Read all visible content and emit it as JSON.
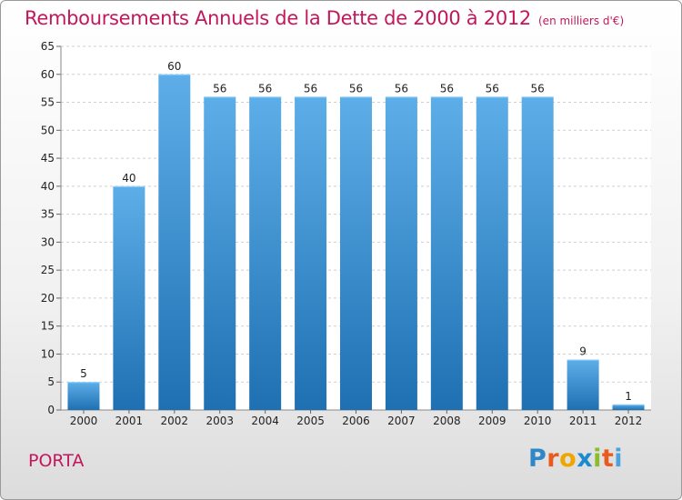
{
  "header": {
    "title": "Remboursements Annuels de la Dette de 2000 à 2012",
    "unit": "(en milliers d'€)"
  },
  "footer": {
    "commune": "PORTA",
    "logo": {
      "text": "Proxiti"
    }
  },
  "colors": {
    "title": "#c2185b",
    "bar_top": "#5daee8",
    "bar_bottom": "#1f70b2",
    "grid": "#cfcfcf",
    "axis_text": "#222222",
    "logo_letters": [
      "#2e87c8",
      "#e95a1f",
      "#f0a500",
      "#1c8ad1",
      "#8bbd2b",
      "#e95a1f",
      "#4aa3df"
    ]
  },
  "chart_data": {
    "type": "bar",
    "title": "Remboursements Annuels de la Dette de 2000 à 2012",
    "subtitle": "(en milliers d'€)",
    "categories": [
      "2000",
      "2001",
      "2002",
      "2003",
      "2004",
      "2005",
      "2006",
      "2007",
      "2008",
      "2009",
      "2010",
      "2011",
      "2012"
    ],
    "values": [
      5,
      40,
      60,
      56,
      56,
      56,
      56,
      56,
      56,
      56,
      56,
      9,
      1
    ],
    "ylim": [
      0,
      65
    ],
    "yticks": [
      0,
      5,
      10,
      15,
      20,
      25,
      30,
      35,
      40,
      45,
      50,
      55,
      60,
      65
    ],
    "grid": true,
    "data_labels": true
  }
}
